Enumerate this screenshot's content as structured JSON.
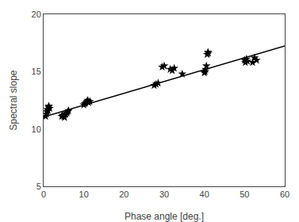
{
  "chart_data": {
    "type": "scatter",
    "xlabel": "Phase angle [deg.]",
    "ylabel": "Spectral slope",
    "xlim": [
      0,
      60
    ],
    "ylim": [
      5,
      20
    ],
    "xticks": [
      0,
      10,
      20,
      30,
      40,
      50,
      60
    ],
    "yticks": [
      5,
      10,
      15,
      20
    ],
    "grid": false,
    "series": [
      {
        "type": "scatter",
        "marker": "star",
        "color": "black",
        "x": [
          0.5,
          0.7,
          0.8,
          1.0,
          1.1,
          1.2,
          1.3,
          1.5,
          4.5,
          4.7,
          5.0,
          5.2,
          5.5,
          5.8,
          6.0,
          6.2,
          10.0,
          10.3,
          10.5,
          10.8,
          11.0,
          11.2,
          11.5,
          27.5,
          28.0,
          28.5,
          29.5,
          30.0,
          31.5,
          32.0,
          32.5,
          34.5,
          40.0,
          40.2,
          40.3,
          40.5,
          40.7,
          40.9,
          41.0,
          50.0,
          50.2,
          50.5,
          50.7,
          52.0,
          52.5,
          53.0
        ],
        "values": [
          11.1,
          11.3,
          11.5,
          11.7,
          11.6,
          11.9,
          12.0,
          11.8,
          11.1,
          11.2,
          11.1,
          11.0,
          11.3,
          11.4,
          11.5,
          11.6,
          12.1,
          12.2,
          12.3,
          12.4,
          12.5,
          12.3,
          12.4,
          13.8,
          13.9,
          14.0,
          15.4,
          15.5,
          15.2,
          15.1,
          15.3,
          14.8,
          14.9,
          15.0,
          15.2,
          15.5,
          16.5,
          16.7,
          16.6,
          16.0,
          15.8,
          16.1,
          15.9,
          15.8,
          16.2,
          16.0
        ]
      },
      {
        "type": "line",
        "line_style": "solid",
        "color": "black",
        "x": [
          0,
          60
        ],
        "values": [
          11.05,
          17.23
        ]
      }
    ]
  }
}
